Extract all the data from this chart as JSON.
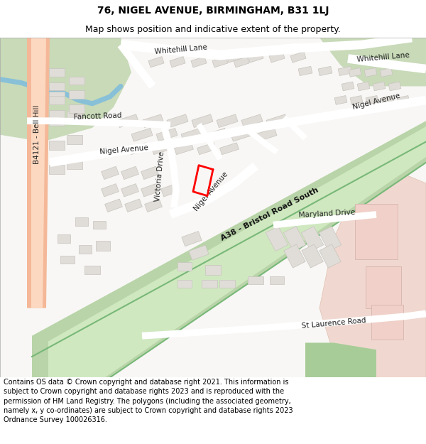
{
  "title_line1": "76, NIGEL AVENUE, BIRMINGHAM, B31 1LJ",
  "title_line2": "Map shows position and indicative extent of the property.",
  "footer_text": "Contains OS data © Crown copyright and database right 2021. This information is subject to Crown copyright and database rights 2023 and is reproduced with the permission of HM Land Registry. The polygons (including the associated geometry, namely x, y co-ordinates) are subject to Crown copyright and database rights 2023 Ordnance Survey 100026316.",
  "title_fontsize": 10,
  "subtitle_fontsize": 9,
  "footer_fontsize": 7.0,
  "bg_color": "#ffffff",
  "map_bg": "#f5f3f0",
  "fig_width": 6.0,
  "fig_height": 6.25
}
